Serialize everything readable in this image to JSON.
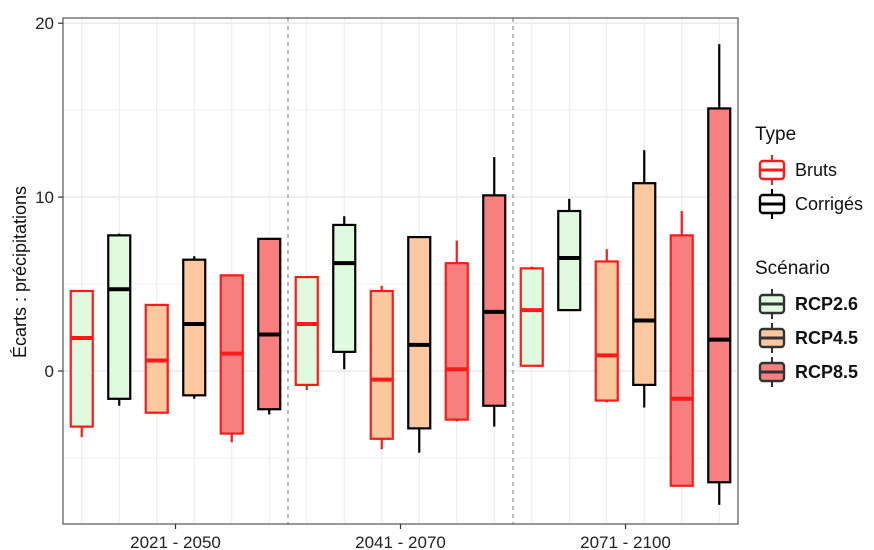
{
  "chart_data": {
    "type": "boxplot",
    "ylabel": "Écarts : précipitations",
    "xlabel": "",
    "ylim": [
      -8.8,
      20.3
    ],
    "yticks": [
      0,
      10,
      20
    ],
    "categories": [
      "2021 - 2050",
      "2041 - 2070",
      "2071 - 2100"
    ],
    "grid": true,
    "legends": [
      {
        "title": "Type",
        "entries": [
          {
            "label": "Bruts",
            "stroke": "#ff1a1a"
          },
          {
            "label": "Corrigés",
            "stroke": "#000000"
          }
        ]
      },
      {
        "title": "Scénario",
        "entries": [
          {
            "label": "RCP2.6",
            "fill": "#e0fae0"
          },
          {
            "label": "RCP4.5",
            "fill": "#fcc8a0"
          },
          {
            "label": "RCP8.5",
            "fill": "#f77f80"
          }
        ]
      }
    ],
    "colors": {
      "RCP2.6": "#e0fae0",
      "RCP4.5": "#fcc8a0",
      "RCP8.5": "#f77f80",
      "Bruts": "#ff1a1a",
      "Corrigés": "#000000"
    },
    "boxes": [
      {
        "period": "2021 - 2050",
        "scenario": "RCP2.6",
        "type": "Bruts",
        "min": -3.8,
        "q1": -3.2,
        "median": 1.9,
        "q3": 4.6,
        "max": 4.6
      },
      {
        "period": "2021 - 2050",
        "scenario": "RCP2.6",
        "type": "Corrigés",
        "min": -2.0,
        "q1": -1.6,
        "median": 4.7,
        "q3": 7.8,
        "max": 7.9
      },
      {
        "period": "2021 - 2050",
        "scenario": "RCP4.5",
        "type": "Bruts",
        "min": -2.4,
        "q1": -2.4,
        "median": 0.6,
        "q3": 3.8,
        "max": 3.8
      },
      {
        "period": "2021 - 2050",
        "scenario": "RCP4.5",
        "type": "Corrigés",
        "min": -1.6,
        "q1": -1.4,
        "median": 2.7,
        "q3": 6.4,
        "max": 6.6
      },
      {
        "period": "2021 - 2050",
        "scenario": "RCP8.5",
        "type": "Bruts",
        "min": -4.1,
        "q1": -3.6,
        "median": 1.0,
        "q3": 5.5,
        "max": 5.5
      },
      {
        "period": "2021 - 2050",
        "scenario": "RCP8.5",
        "type": "Corrigés",
        "min": -2.5,
        "q1": -2.2,
        "median": 2.1,
        "q3": 7.6,
        "max": 7.6
      },
      {
        "period": "2041 - 2070",
        "scenario": "RCP2.6",
        "type": "Bruts",
        "min": -1.1,
        "q1": -0.8,
        "median": 2.7,
        "q3": 5.4,
        "max": 5.4
      },
      {
        "period": "2041 - 2070",
        "scenario": "RCP2.6",
        "type": "Corrigés",
        "min": 0.1,
        "q1": 1.1,
        "median": 6.2,
        "q3": 8.4,
        "max": 8.9
      },
      {
        "period": "2041 - 2070",
        "scenario": "RCP4.5",
        "type": "Bruts",
        "min": -4.5,
        "q1": -3.9,
        "median": -0.5,
        "q3": 4.6,
        "max": 4.9
      },
      {
        "period": "2041 - 2070",
        "scenario": "RCP4.5",
        "type": "Corrigés",
        "min": -4.7,
        "q1": -3.3,
        "median": 1.5,
        "q3": 7.7,
        "max": 7.7
      },
      {
        "period": "2041 - 2070",
        "scenario": "RCP8.5",
        "type": "Bruts",
        "min": -2.9,
        "q1": -2.8,
        "median": 0.1,
        "q3": 6.2,
        "max": 7.5
      },
      {
        "period": "2041 - 2070",
        "scenario": "RCP8.5",
        "type": "Corrigés",
        "min": -3.2,
        "q1": -2.0,
        "median": 3.4,
        "q3": 10.1,
        "max": 12.3
      },
      {
        "period": "2071 - 2100",
        "scenario": "RCP2.6",
        "type": "Bruts",
        "min": 0.3,
        "q1": 0.3,
        "median": 3.5,
        "q3": 5.9,
        "max": 6.0
      },
      {
        "period": "2071 - 2100",
        "scenario": "RCP2.6",
        "type": "Corrigés",
        "min": 3.5,
        "q1": 3.5,
        "median": 6.5,
        "q3": 9.2,
        "max": 9.9
      },
      {
        "period": "2071 - 2100",
        "scenario": "RCP4.5",
        "type": "Bruts",
        "min": -1.8,
        "q1": -1.7,
        "median": 0.9,
        "q3": 6.3,
        "max": 7.0
      },
      {
        "period": "2071 - 2100",
        "scenario": "RCP4.5",
        "type": "Corrigés",
        "min": -2.1,
        "q1": -0.8,
        "median": 2.9,
        "q3": 10.8,
        "max": 12.7
      },
      {
        "period": "2071 - 2100",
        "scenario": "RCP8.5",
        "type": "Bruts",
        "min": -6.6,
        "q1": -6.6,
        "median": -1.6,
        "q3": 7.8,
        "max": 9.2
      },
      {
        "period": "2071 - 2100",
        "scenario": "RCP8.5",
        "type": "Corrigés",
        "min": -7.7,
        "q1": -6.4,
        "median": 1.8,
        "q3": 15.1,
        "max": 18.8
      }
    ]
  }
}
